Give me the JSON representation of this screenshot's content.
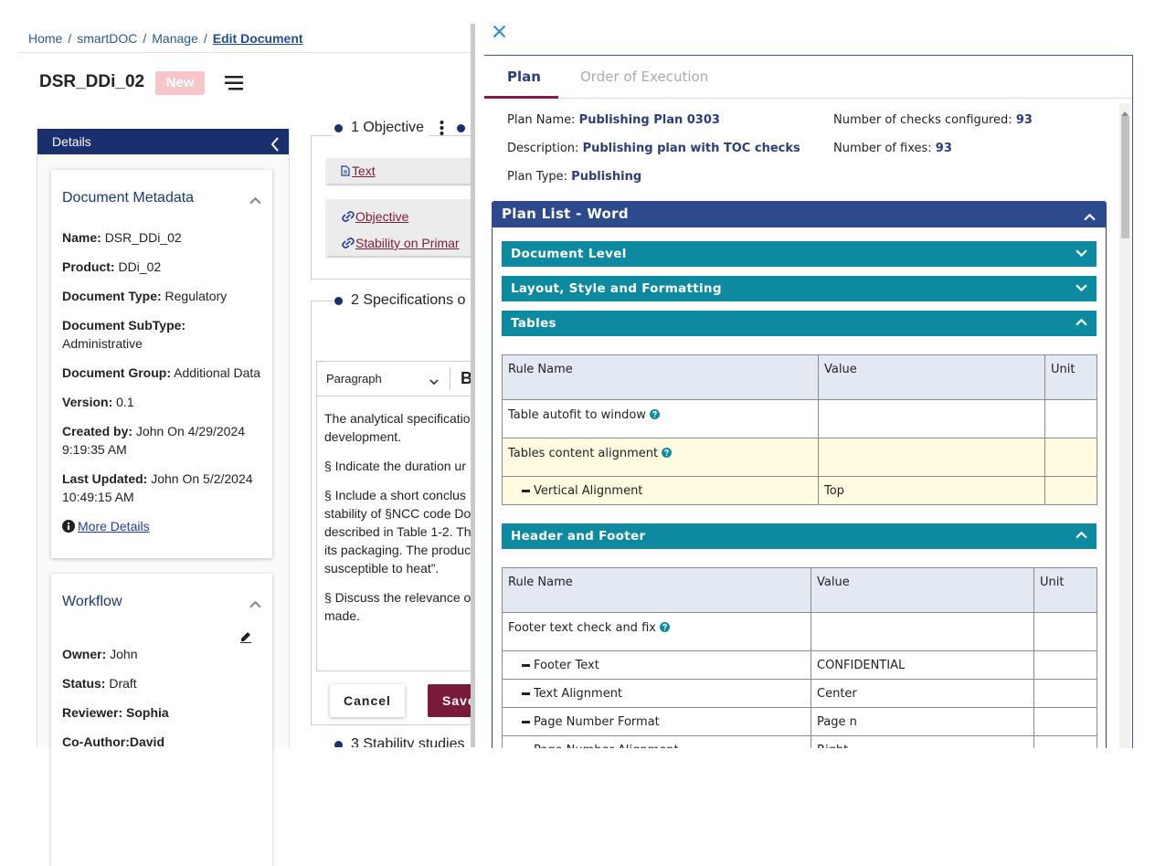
{
  "breadcrumb": {
    "items": [
      "Home",
      "smartDOC",
      "Manage",
      "Edit Document"
    ],
    "separator": "/"
  },
  "document": {
    "title": "DSR_DDi_02",
    "status": "New"
  },
  "details": {
    "header": "Details",
    "metadata": {
      "title": "Document Metadata",
      "fields": [
        {
          "label": "Name:",
          "value": "DSR_DDi_02"
        },
        {
          "label": "Product:",
          "value": "DDi_02"
        },
        {
          "label": "Document Type:",
          "value": "Regulatory"
        },
        {
          "label": "Document SubType:",
          "value": "Administrative"
        },
        {
          "label": "Document Group:",
          "value": "Additional Data"
        },
        {
          "label": "Version:",
          "value": "0.1"
        },
        {
          "label": "Created by:",
          "value": "John On 4/29/2024 9:19:35 AM"
        },
        {
          "label": "Last Updated:",
          "value": "John On 5/2/2024 10:49:15 AM"
        }
      ],
      "more_details": "More Details"
    },
    "workflow": {
      "title": "Workflow",
      "fields": [
        {
          "label": "Owner:",
          "value": "John"
        },
        {
          "label": "Status:",
          "value": "Draft"
        },
        {
          "label": "Reviewer:",
          "value": "Sophia",
          "bold": true
        },
        {
          "label": "Co-Author:",
          "value": "David",
          "bold": true
        }
      ]
    }
  },
  "editor": {
    "sections": [
      "1 Objective",
      "2 Specifications o",
      "3 Stability studies"
    ],
    "attachment": "Text",
    "links": [
      "Objective",
      "Stability on Primar"
    ],
    "toolbar": {
      "block_format": "Paragraph",
      "bold": "B"
    },
    "paragraphs": [
      [
        "The analytical specificatio",
        "development."
      ],
      [
        "§ Indicate the duration ur"
      ],
      [
        "§ Include a short conclus",
        "stability of §NCC code Do",
        "described in Table 1-2. Th",
        "its packaging. The produc",
        "susceptible to heat”."
      ],
      [
        "§ Discuss the relevance o",
        "made."
      ]
    ],
    "buttons": {
      "cancel": "Cancel",
      "save": "Save"
    }
  },
  "panel": {
    "tabs": [
      "Plan",
      "Order of Execution"
    ],
    "active_tab": 0,
    "info": [
      {
        "label": "Plan Name:",
        "value": "Publishing Plan 0303"
      },
      {
        "label": "Number of checks configured:",
        "value": "93"
      },
      {
        "label": "Description:",
        "value": "Publishing plan with TOC checks"
      },
      {
        "label": "Number of fixes:",
        "value": "93"
      },
      {
        "label": "Plan Type:",
        "value": "Publishing"
      }
    ],
    "plan_list": {
      "title": "Plan List - Word",
      "groups": [
        {
          "name": "Document Level",
          "expanded": false
        },
        {
          "name": "Layout, Style and Formatting",
          "expanded": false
        },
        {
          "name": "Tables",
          "expanded": true,
          "columns": [
            "Rule Name",
            "Value",
            "Unit"
          ],
          "rows": [
            {
              "name": "Table autofit to window",
              "help": true
            },
            {
              "name": "Tables content alignment",
              "help": true,
              "highlight": true
            },
            {
              "name": "Vertical Alignment",
              "value": "Top",
              "child": true,
              "highlight": true
            }
          ]
        },
        {
          "name": "Header and Footer",
          "expanded": true,
          "columns": [
            "Rule Name",
            "Value",
            "Unit"
          ],
          "rows": [
            {
              "name": "Footer text check and fix",
              "help": true
            },
            {
              "name": "Footer Text",
              "value": "CONFIDENTIAL",
              "child": true
            },
            {
              "name": "Text Alignment",
              "value": "Center",
              "child": true
            },
            {
              "name": "Page Number Format",
              "value": "Page n",
              "child": true
            },
            {
              "name": "Page Number Alignment",
              "value": "Right",
              "child": true
            }
          ]
        }
      ]
    }
  }
}
